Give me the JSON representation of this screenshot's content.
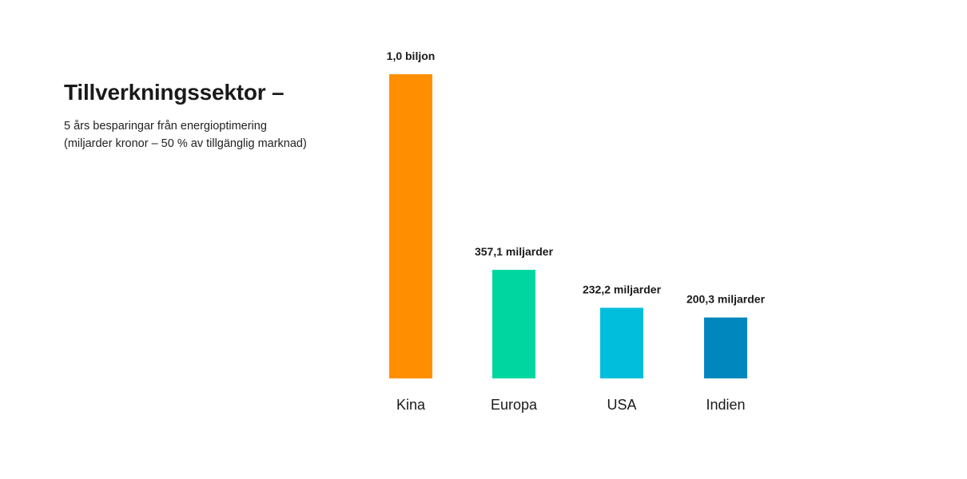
{
  "chart_data": {
    "type": "bar",
    "title": "Tillverkningssektor –",
    "subtitle": "5 års besparingar från energioptimering (miljarder kronor – 50 % av tillgänglig marknad)",
    "categories": [
      "Kina",
      "Europa",
      "USA",
      "Indien"
    ],
    "values": [
      1000,
      357.1,
      232.2,
      200.3
    ],
    "value_labels": [
      "1,0 biljon",
      "357,1 miljarder",
      "232,2 miljarder",
      "200,3 miljarder"
    ],
    "colors": [
      "#FF8F00",
      "#00D7A0",
      "#00BEDC",
      "#0087BE"
    ],
    "xlabel": "",
    "ylabel": "",
    "ylim": [
      0,
      1000
    ],
    "grid": false,
    "legend": "none"
  }
}
